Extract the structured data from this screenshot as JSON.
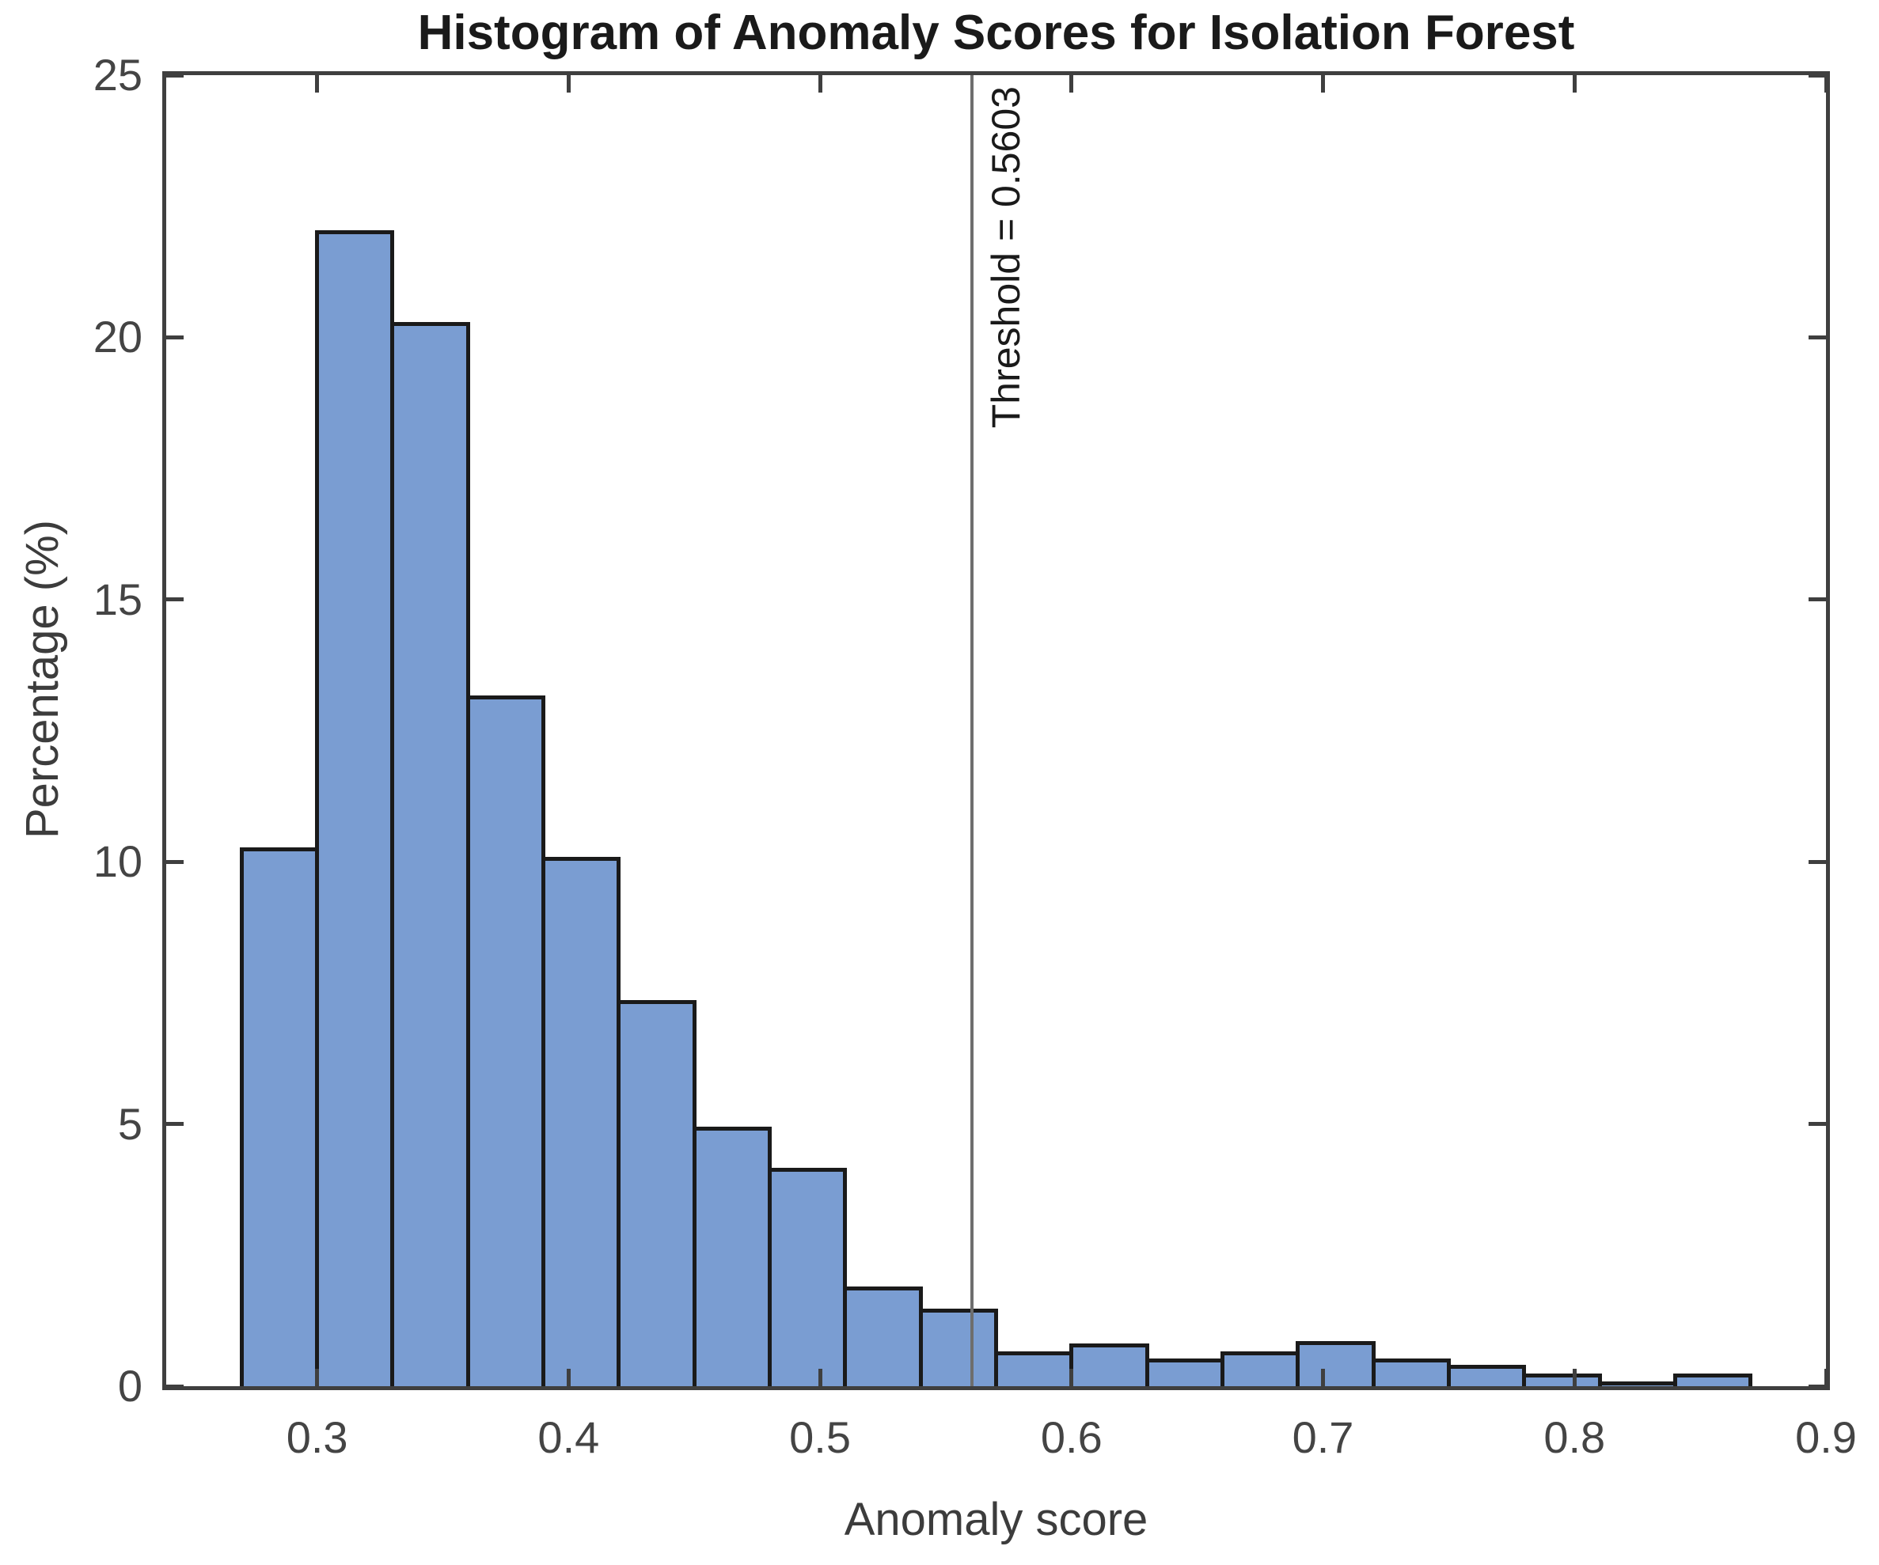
{
  "figure": {
    "title": "Histogram of Anomaly Scores for Isolation Forest",
    "xlabel": "Anomaly score",
    "ylabel": "Percentage (%)"
  },
  "threshold": {
    "value": 0.5603,
    "label": "Threshold = 0.5603"
  },
  "chart_data": {
    "type": "bar",
    "subtype": "histogram",
    "title": "Histogram of Anomaly Scores for Isolation Forest",
    "xlabel": "Anomaly score",
    "ylabel": "Percentage (%)",
    "bin_edges": [
      0.27,
      0.3,
      0.33,
      0.36,
      0.39,
      0.42,
      0.45,
      0.48,
      0.51,
      0.54,
      0.57,
      0.6,
      0.63,
      0.66,
      0.69,
      0.72,
      0.75,
      0.78,
      0.81,
      0.84,
      0.87
    ],
    "values": [
      10.23,
      22.0,
      20.25,
      13.13,
      10.06,
      7.32,
      4.91,
      4.13,
      1.86,
      1.44,
      0.62,
      0.77,
      0.49,
      0.62,
      0.82,
      0.49,
      0.37,
      0.2,
      0.06,
      0.2
    ],
    "xlim": [
      0.24,
      0.9
    ],
    "ylim": [
      0,
      25
    ],
    "x_ticks": [
      0.3,
      0.4,
      0.5,
      0.6,
      0.7,
      0.8,
      0.9
    ],
    "x_tick_labels": [
      "0.3",
      "0.4",
      "0.5",
      "0.6",
      "0.7",
      "0.8",
      "0.9"
    ],
    "y_ticks": [
      0,
      5,
      10,
      15,
      20,
      25
    ],
    "y_tick_labels": [
      "0",
      "5",
      "10",
      "15",
      "20",
      "25"
    ],
    "threshold_value": 0.5603,
    "threshold_label": "Threshold = 0.5603",
    "grid": "off",
    "legend": "none",
    "colors": {
      "bar_fill": "#7a9dd2",
      "bar_edge": "#1a1a1a",
      "axis": "#3f3f3f",
      "tick_label": "#444444",
      "threshold_line": "#6e6e6e",
      "title_text": "#1a1a1a"
    }
  }
}
